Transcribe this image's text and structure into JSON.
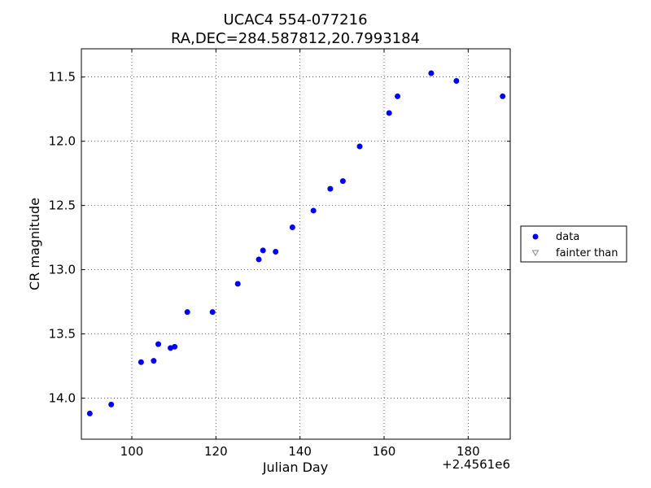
{
  "chart_data": {
    "type": "scatter",
    "title": "UCAC4 554-077216",
    "subtitle": "RA,DEC=284.587812,20.7993184",
    "xlabel": "Julian Day",
    "ylabel": "CR magnitude",
    "x_offset_label": "+2.4561e6",
    "xlim": [
      88,
      190
    ],
    "ylim": [
      14.32,
      11.28
    ],
    "y_inverted": true,
    "grid": true,
    "legend_position": "right",
    "x_ticks": [
      100,
      120,
      140,
      160,
      180
    ],
    "x_tick_labels": [
      "100",
      "120",
      "140",
      "160",
      "180"
    ],
    "y_ticks": [
      11.5,
      12.0,
      12.5,
      13.0,
      13.5,
      14.0
    ],
    "y_tick_labels": [
      "11.5",
      "12.0",
      "12.5",
      "13.0",
      "13.5",
      "14.0"
    ],
    "series": [
      {
        "name": "data",
        "marker": "circle",
        "color": "#0000ff",
        "x": [
          90.0,
          95.1,
          102.2,
          105.2,
          106.3,
          109.2,
          110.2,
          113.2,
          119.2,
          125.2,
          130.2,
          131.2,
          134.2,
          138.2,
          143.2,
          147.2,
          150.2,
          154.2,
          161.2,
          163.2,
          171.2,
          177.2,
          188.2
        ],
        "y": [
          14.12,
          14.05,
          13.72,
          13.71,
          13.58,
          13.61,
          13.6,
          13.33,
          13.33,
          13.11,
          12.92,
          12.85,
          12.86,
          12.67,
          12.54,
          12.37,
          12.31,
          12.04,
          11.78,
          11.65,
          11.47,
          11.53,
          11.65
        ]
      },
      {
        "name": "fainter than",
        "marker": "triangle-down",
        "color": "#888888",
        "x": [],
        "y": []
      }
    ]
  }
}
